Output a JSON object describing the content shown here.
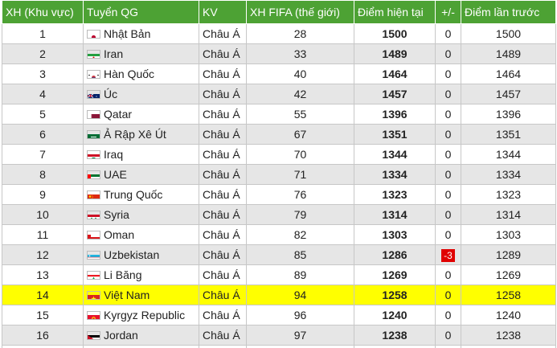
{
  "headers": [
    "XH (Khu vực)",
    "Tuyển QG",
    "KV",
    "XH FIFA (thế giới)",
    "Điểm hiện tại",
    "+/-",
    "Điểm lần trước"
  ],
  "rows": [
    {
      "rank": "1",
      "team": "Nhật Bản",
      "kv": "Châu Á",
      "fifa": "28",
      "points": "1500",
      "change": "0",
      "prev": "1500",
      "flag": "japan-flag-icon",
      "highlight": false
    },
    {
      "rank": "2",
      "team": "Iran",
      "kv": "Châu Á",
      "fifa": "33",
      "points": "1489",
      "change": "0",
      "prev": "1489",
      "flag": "iran-flag-icon",
      "highlight": false
    },
    {
      "rank": "3",
      "team": "Hàn Quốc",
      "kv": "Châu Á",
      "fifa": "40",
      "points": "1464",
      "change": "0",
      "prev": "1464",
      "flag": "south-korea-flag-icon",
      "highlight": false
    },
    {
      "rank": "4",
      "team": "Úc",
      "kv": "Châu Á",
      "fifa": "42",
      "points": "1457",
      "change": "0",
      "prev": "1457",
      "flag": "australia-flag-icon",
      "highlight": false
    },
    {
      "rank": "5",
      "team": "Qatar",
      "kv": "Châu Á",
      "fifa": "55",
      "points": "1396",
      "change": "0",
      "prev": "1396",
      "flag": "qatar-flag-icon",
      "highlight": false
    },
    {
      "rank": "6",
      "team": "Ả Rập Xê Út",
      "kv": "Châu Á",
      "fifa": "67",
      "points": "1351",
      "change": "0",
      "prev": "1351",
      "flag": "saudi-arabia-flag-icon",
      "highlight": false
    },
    {
      "rank": "7",
      "team": "Iraq",
      "kv": "Châu Á",
      "fifa": "70",
      "points": "1344",
      "change": "0",
      "prev": "1344",
      "flag": "iraq-flag-icon",
      "highlight": false
    },
    {
      "rank": "8",
      "team": "UAE",
      "kv": "Châu Á",
      "fifa": "71",
      "points": "1334",
      "change": "0",
      "prev": "1334",
      "flag": "uae-flag-icon",
      "highlight": false
    },
    {
      "rank": "9",
      "team": "Trung Quốc",
      "kv": "Châu Á",
      "fifa": "76",
      "points": "1323",
      "change": "0",
      "prev": "1323",
      "flag": "china-flag-icon",
      "highlight": false
    },
    {
      "rank": "10",
      "team": "Syria",
      "kv": "Châu Á",
      "fifa": "79",
      "points": "1314",
      "change": "0",
      "prev": "1314",
      "flag": "syria-flag-icon",
      "highlight": false
    },
    {
      "rank": "11",
      "team": "Oman",
      "kv": "Châu Á",
      "fifa": "82",
      "points": "1303",
      "change": "0",
      "prev": "1303",
      "flag": "oman-flag-icon",
      "highlight": false
    },
    {
      "rank": "12",
      "team": "Uzbekistan",
      "kv": "Châu Á",
      "fifa": "85",
      "points": "1286",
      "change": "-3",
      "prev": "1289",
      "flag": "uzbekistan-flag-icon",
      "highlight": false
    },
    {
      "rank": "13",
      "team": "Li Băng",
      "kv": "Châu Á",
      "fifa": "89",
      "points": "1269",
      "change": "0",
      "prev": "1269",
      "flag": "lebanon-flag-icon",
      "highlight": false
    },
    {
      "rank": "14",
      "team": "Việt Nam",
      "kv": "Châu Á",
      "fifa": "94",
      "points": "1258",
      "change": "0",
      "prev": "1258",
      "flag": "vietnam-flag-icon",
      "highlight": true
    },
    {
      "rank": "15",
      "team": "Kyrgyz Republic",
      "kv": "Châu Á",
      "fifa": "96",
      "points": "1240",
      "change": "0",
      "prev": "1240",
      "flag": "kyrgyzstan-flag-icon",
      "highlight": false
    },
    {
      "rank": "16",
      "team": "Jordan",
      "kv": "Châu Á",
      "fifa": "97",
      "points": "1238",
      "change": "0",
      "prev": "1238",
      "flag": "jordan-flag-icon",
      "highlight": false
    }
  ],
  "colors": {
    "header_bg": "#4da234",
    "row_alt": "#e6e6e6",
    "highlight": "#ffff00",
    "negative": "#e00000"
  }
}
